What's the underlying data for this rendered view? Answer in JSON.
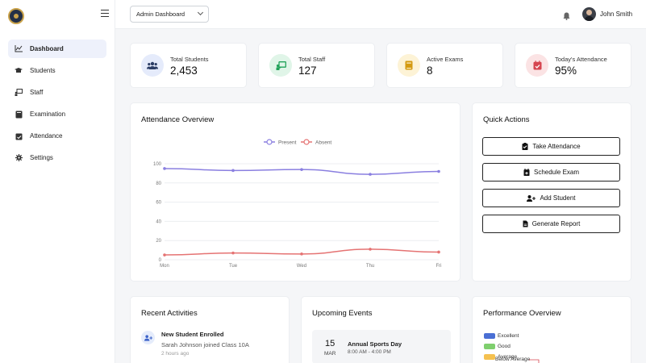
{
  "header": {
    "dashboard_select": "Admin Dashboard",
    "user_name": "John Smith"
  },
  "sidebar": {
    "items": [
      {
        "label": "Dashboard",
        "icon": "chart-line-icon",
        "active": true
      },
      {
        "label": "Students",
        "icon": "graduation-cap-icon"
      },
      {
        "label": "Staff",
        "icon": "chalkboard-teacher-icon"
      },
      {
        "label": "Examination",
        "icon": "book-icon"
      },
      {
        "label": "Attendance",
        "icon": "calendar-check-icon"
      },
      {
        "label": "Settings",
        "icon": "gear-icon"
      }
    ]
  },
  "stats": [
    {
      "label": "Total Students",
      "value": "2,453",
      "icon": "users-icon",
      "color": "#4f6fd8",
      "bg": "#e5ebfb"
    },
    {
      "label": "Total Staff",
      "value": "127",
      "icon": "chalkboard-teacher-icon",
      "color": "#22a35a",
      "bg": "#e0f5e8"
    },
    {
      "label": "Active Exams",
      "value": "8",
      "icon": "book-icon",
      "color": "#d49a10",
      "bg": "#fdf3d6"
    },
    {
      "label": "Today's Attendance",
      "value": "95%",
      "icon": "calendar-check-icon",
      "color": "#d64550",
      "bg": "#fbe3e4"
    }
  ],
  "attendance": {
    "title": "Attendance Overview"
  },
  "chart_data": {
    "type": "line",
    "categories": [
      "Mon",
      "Tue",
      "Wed",
      "Thu",
      "Fri"
    ],
    "series": [
      {
        "name": "Present",
        "values": [
          95,
          93,
          94,
          89,
          92
        ],
        "color": "#8a7fe0"
      },
      {
        "name": "Absent",
        "values": [
          5,
          7,
          6,
          11,
          8
        ],
        "color": "#e57373"
      }
    ],
    "ylim": [
      0,
      100
    ],
    "yticks": [
      0,
      20,
      40,
      60,
      80,
      100
    ],
    "grid": true,
    "legend": "top-center"
  },
  "quick_actions": {
    "title": "Quick Actions",
    "buttons": [
      {
        "label": "Take Attendance",
        "icon": "clipboard-check-icon"
      },
      {
        "label": "Schedule Exam",
        "icon": "calendar-plus-icon"
      },
      {
        "label": "Add Student",
        "icon": "user-plus-icon"
      },
      {
        "label": "Generate Report",
        "icon": "file-icon"
      }
    ]
  },
  "activities": {
    "title": "Recent Activities",
    "items": [
      {
        "title": "New Student Enrolled",
        "desc": "Sarah Johnson joined Class 10A",
        "time": "2 hours ago",
        "icon": "user-plus-icon"
      }
    ]
  },
  "events": {
    "title": "Upcoming Events",
    "items": [
      {
        "day": "15",
        "month": "MAR",
        "title": "Annual Sports Day",
        "time": "8:00 AM - 4:00 PM"
      }
    ]
  },
  "performance": {
    "title": "Performance Overview",
    "legend": [
      {
        "label": "Excellent",
        "color": "#4a6fd4"
      },
      {
        "label": "Good",
        "color": "#7fcf6e"
      },
      {
        "label": "Average",
        "color": "#f5c150"
      }
    ],
    "overflow_label": "Below Average"
  }
}
